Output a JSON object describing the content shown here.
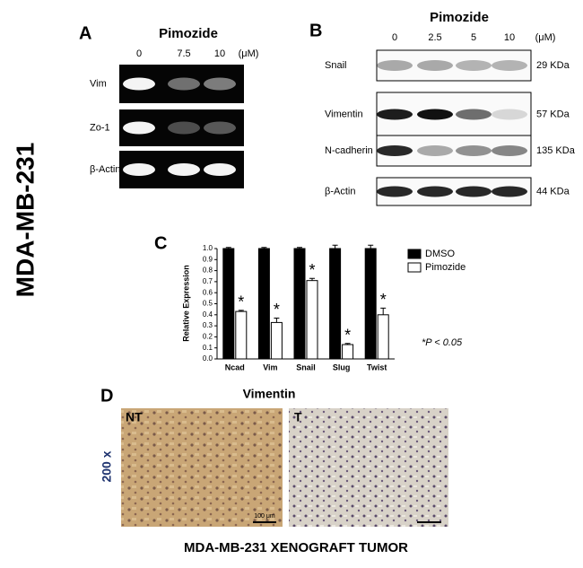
{
  "side_label": "MDA-MB-231",
  "panel_a": {
    "label": "A",
    "treatment": "Pimozide",
    "doses": [
      "0",
      "7.5",
      "10",
      "(μM)"
    ],
    "rows": [
      "Vim",
      "Zo-1",
      "β-Actin"
    ]
  },
  "panel_b": {
    "label": "B",
    "treatment": "Pimozide",
    "doses": [
      "0",
      "2.5",
      "5",
      "10",
      "(μM)"
    ],
    "rows": [
      {
        "name": "Snail",
        "size": "29 KDa"
      },
      {
        "name": "Vimentin",
        "size": "57 KDa"
      },
      {
        "name": "N-cadherin",
        "size": "135 KDa"
      },
      {
        "name": "β-Actin",
        "size": "44 KDa"
      }
    ]
  },
  "chart_data": {
    "type": "bar",
    "label": "C",
    "y_label": "Relative Expression",
    "categories": [
      "Ncad",
      "Vim",
      "Snail",
      "Slug",
      "Twist"
    ],
    "series": [
      {
        "name": "DMSO",
        "color": "#000000",
        "values": [
          1.0,
          1.0,
          1.0,
          1.0,
          1.0
        ],
        "errors": [
          0.01,
          0.01,
          0.01,
          0.03,
          0.03
        ]
      },
      {
        "name": "Pimozide",
        "color": "#ffffff",
        "values": [
          0.43,
          0.33,
          0.71,
          0.13,
          0.4
        ],
        "errors": [
          0.01,
          0.04,
          0.02,
          0.01,
          0.06
        ],
        "annotations": [
          "*",
          "*",
          "*",
          "*",
          "*"
        ]
      }
    ],
    "ylim": [
      0,
      1.0
    ],
    "yticks": [
      {
        "value": 0,
        "label": "0.0"
      },
      0.1,
      0.2,
      0.3,
      0.4,
      0.5,
      0.6,
      0.7,
      0.8,
      0.9,
      {
        "value": 1,
        "label": "1.0"
      }
    ],
    "note": "*P < 0.05",
    "legend": "top-right"
  },
  "panel_d": {
    "label": "D",
    "stain": "Vimentin",
    "magnification": "200 x",
    "left_image": "NT",
    "right_image": "T",
    "scale_bar": "100 μm",
    "caption": "MDA-MB-231 XENOGRAFT TUMOR"
  }
}
